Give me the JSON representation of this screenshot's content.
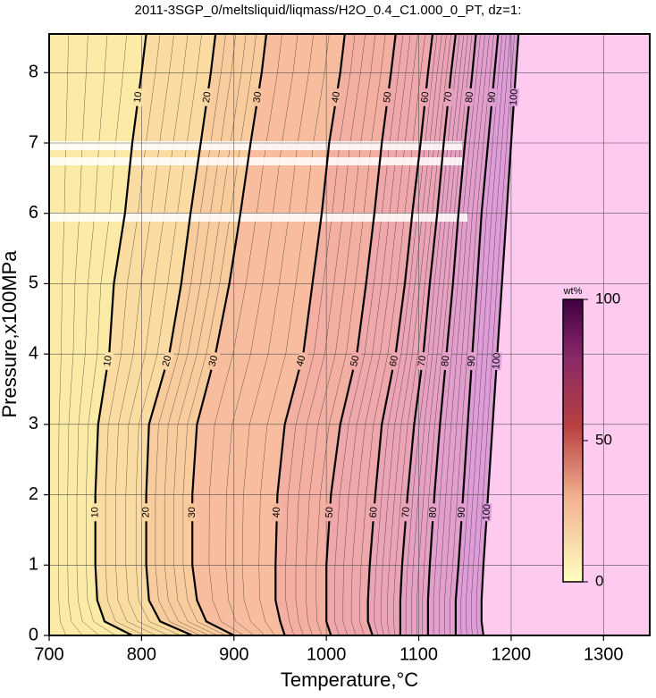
{
  "chart_data": {
    "type": "contour",
    "title": "2011-3SGP_0/meltsliquid/liqmass/H2O_0.4_C1.000_0_PT, dz=1:",
    "x_label": "Temperature,°C",
    "y_label": "Pressure,x100MPa",
    "xlim": [
      700,
      1350
    ],
    "xticks": [
      700,
      800,
      900,
      1000,
      1100,
      1200,
      1300
    ],
    "ylim": [
      0,
      8.55
    ],
    "yticks": [
      0,
      1,
      2,
      3,
      4,
      5,
      6,
      7,
      8
    ],
    "grid": true,
    "y": [
      0,
      0.2,
      0.5,
      1,
      2,
      3,
      4,
      5,
      6,
      7,
      8,
      8.55
    ],
    "series": [
      {
        "name": "10",
        "values": [
          790,
          760,
          752,
          750,
          750,
          753,
          765,
          770,
          782,
          790,
          800,
          805
        ]
      },
      {
        "name": "20",
        "values": [
          855,
          820,
          808,
          805,
          805,
          808,
          830,
          843,
          853,
          864,
          875,
          880
        ]
      },
      {
        "name": "30",
        "values": [
          900,
          870,
          860,
          855,
          855,
          860,
          880,
          895,
          907,
          918,
          930,
          935
        ]
      },
      {
        "name": "40",
        "values": [
          955,
          950,
          945,
          945,
          947,
          955,
          975,
          985,
          995,
          1003,
          1015,
          1020
        ]
      },
      {
        "name": "50",
        "values": [
          1005,
          1000,
          1000,
          1000,
          1005,
          1015,
          1033,
          1043,
          1052,
          1060,
          1070,
          1075
        ]
      },
      {
        "name": "60",
        "values": [
          1050,
          1045,
          1045,
          1047,
          1053,
          1060,
          1075,
          1085,
          1093,
          1102,
          1110,
          1115
        ]
      },
      {
        "name": "70",
        "values": [
          1080,
          1080,
          1080,
          1082,
          1088,
          1095,
          1105,
          1112,
          1120,
          1127,
          1135,
          1140
        ]
      },
      {
        "name": "80",
        "values": [
          1110,
          1110,
          1110,
          1112,
          1117,
          1123,
          1130,
          1137,
          1143,
          1150,
          1158,
          1162
        ]
      },
      {
        "name": "90",
        "values": [
          1140,
          1140,
          1140,
          1143,
          1148,
          1153,
          1158,
          1163,
          1168,
          1175,
          1182,
          1186
        ]
      },
      {
        "name": "100",
        "values": [
          1170,
          1168,
          1168,
          1170,
          1175,
          1180,
          1185,
          1190,
          1195,
          1200,
          1205,
          1208
        ]
      }
    ],
    "colorbar": {
      "label": "wt%",
      "lim": [
        0,
        100
      ],
      "ticks": [
        0,
        50,
        100
      ]
    }
  }
}
